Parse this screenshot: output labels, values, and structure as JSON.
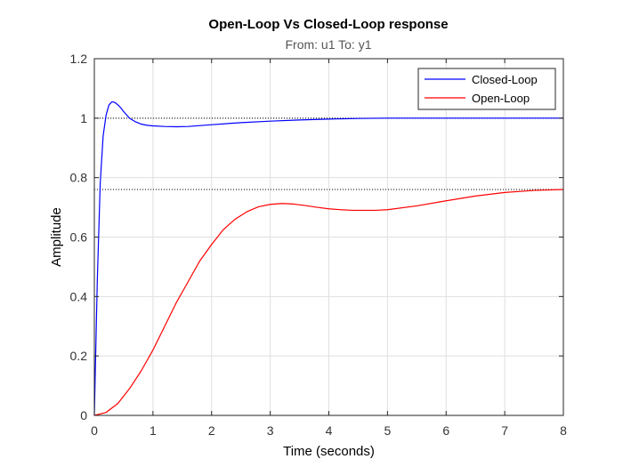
{
  "chart_data": {
    "type": "line",
    "title": "Open-Loop Vs Closed-Loop response",
    "subtitle": "From: u1  To: y1",
    "xlabel": "Time (seconds)",
    "ylabel": "Amplitude",
    "xlim": [
      0,
      8
    ],
    "ylim": [
      0,
      1.2
    ],
    "xticks": [
      0,
      1,
      2,
      3,
      4,
      5,
      6,
      7,
      8
    ],
    "yticks": [
      0,
      0.2,
      0.4,
      0.6,
      0.8,
      1,
      1.2
    ],
    "xtick_labels": [
      "0",
      "1",
      "2",
      "3",
      "4",
      "5",
      "6",
      "7",
      "8"
    ],
    "ytick_labels": [
      "0",
      "0.2",
      "0.4",
      "0.6",
      "0.8",
      "1",
      "1.2"
    ],
    "grid": true,
    "legend_position": "top-right",
    "reference_lines": [
      {
        "y": 1.0,
        "style": "dotted",
        "color": "#000000"
      },
      {
        "y": 0.76,
        "style": "dotted",
        "color": "#000000"
      }
    ],
    "series": [
      {
        "name": "Closed-Loop",
        "color": "#0000ff",
        "x": [
          0,
          0.05,
          0.1,
          0.15,
          0.2,
          0.25,
          0.3,
          0.35,
          0.4,
          0.45,
          0.5,
          0.6,
          0.7,
          0.8,
          0.9,
          1.0,
          1.2,
          1.4,
          1.6,
          1.8,
          2.0,
          2.5,
          3.0,
          3.5,
          4.0,
          4.5,
          5.0,
          6.0,
          7.0,
          8.0
        ],
        "y": [
          0,
          0.45,
          0.78,
          0.94,
          1.01,
          1.045,
          1.055,
          1.053,
          1.045,
          1.035,
          1.022,
          1.0,
          0.988,
          0.98,
          0.976,
          0.974,
          0.972,
          0.971,
          0.972,
          0.975,
          0.978,
          0.985,
          0.99,
          0.994,
          0.997,
          0.999,
          1.0,
          1.0,
          1.0,
          1.0
        ]
      },
      {
        "name": "Open-Loop",
        "color": "#ff0000",
        "x": [
          0,
          0.2,
          0.4,
          0.6,
          0.8,
          1.0,
          1.2,
          1.4,
          1.6,
          1.8,
          2.0,
          2.2,
          2.4,
          2.6,
          2.8,
          3.0,
          3.2,
          3.4,
          3.6,
          3.8,
          4.0,
          4.2,
          4.4,
          4.6,
          4.8,
          5.0,
          5.5,
          6.0,
          6.5,
          7.0,
          7.5,
          8.0
        ],
        "y": [
          0,
          0.01,
          0.04,
          0.09,
          0.15,
          0.22,
          0.3,
          0.38,
          0.45,
          0.52,
          0.575,
          0.625,
          0.66,
          0.685,
          0.702,
          0.71,
          0.713,
          0.711,
          0.706,
          0.7,
          0.695,
          0.692,
          0.69,
          0.69,
          0.69,
          0.692,
          0.705,
          0.722,
          0.738,
          0.75,
          0.757,
          0.76
        ]
      }
    ]
  }
}
